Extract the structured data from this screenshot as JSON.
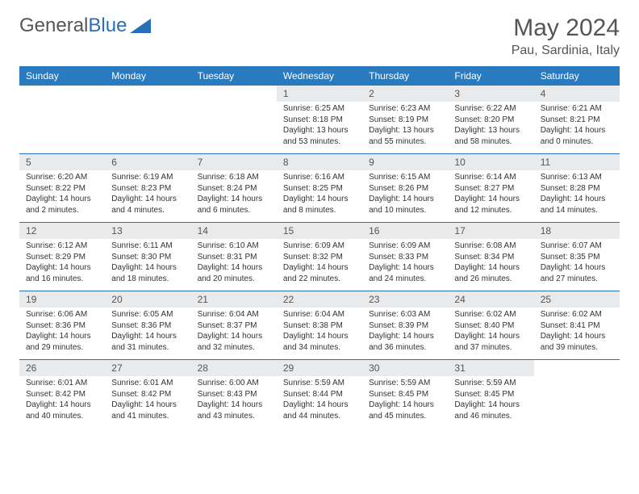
{
  "logo": {
    "text_gray": "General",
    "text_blue": "Blue"
  },
  "title": "May 2024",
  "location": "Pau, Sardinia, Italy",
  "days_of_week": [
    "Sunday",
    "Monday",
    "Tuesday",
    "Wednesday",
    "Thursday",
    "Friday",
    "Saturday"
  ],
  "colors": {
    "header_bg": "#2a7ac0",
    "header_text": "#ffffff",
    "daynum_bg": "#e9eaec",
    "row_border": "#2a6db8",
    "text": "#333333",
    "title_text": "#555555"
  },
  "weeks": [
    [
      {
        "n": "",
        "lines": []
      },
      {
        "n": "",
        "lines": []
      },
      {
        "n": "",
        "lines": []
      },
      {
        "n": "1",
        "lines": [
          "Sunrise: 6:25 AM",
          "Sunset: 8:18 PM",
          "Daylight: 13 hours and 53 minutes."
        ]
      },
      {
        "n": "2",
        "lines": [
          "Sunrise: 6:23 AM",
          "Sunset: 8:19 PM",
          "Daylight: 13 hours and 55 minutes."
        ]
      },
      {
        "n": "3",
        "lines": [
          "Sunrise: 6:22 AM",
          "Sunset: 8:20 PM",
          "Daylight: 13 hours and 58 minutes."
        ]
      },
      {
        "n": "4",
        "lines": [
          "Sunrise: 6:21 AM",
          "Sunset: 8:21 PM",
          "Daylight: 14 hours and 0 minutes."
        ]
      }
    ],
    [
      {
        "n": "5",
        "lines": [
          "Sunrise: 6:20 AM",
          "Sunset: 8:22 PM",
          "Daylight: 14 hours and 2 minutes."
        ]
      },
      {
        "n": "6",
        "lines": [
          "Sunrise: 6:19 AM",
          "Sunset: 8:23 PM",
          "Daylight: 14 hours and 4 minutes."
        ]
      },
      {
        "n": "7",
        "lines": [
          "Sunrise: 6:18 AM",
          "Sunset: 8:24 PM",
          "Daylight: 14 hours and 6 minutes."
        ]
      },
      {
        "n": "8",
        "lines": [
          "Sunrise: 6:16 AM",
          "Sunset: 8:25 PM",
          "Daylight: 14 hours and 8 minutes."
        ]
      },
      {
        "n": "9",
        "lines": [
          "Sunrise: 6:15 AM",
          "Sunset: 8:26 PM",
          "Daylight: 14 hours and 10 minutes."
        ]
      },
      {
        "n": "10",
        "lines": [
          "Sunrise: 6:14 AM",
          "Sunset: 8:27 PM",
          "Daylight: 14 hours and 12 minutes."
        ]
      },
      {
        "n": "11",
        "lines": [
          "Sunrise: 6:13 AM",
          "Sunset: 8:28 PM",
          "Daylight: 14 hours and 14 minutes."
        ]
      }
    ],
    [
      {
        "n": "12",
        "lines": [
          "Sunrise: 6:12 AM",
          "Sunset: 8:29 PM",
          "Daylight: 14 hours and 16 minutes."
        ]
      },
      {
        "n": "13",
        "lines": [
          "Sunrise: 6:11 AM",
          "Sunset: 8:30 PM",
          "Daylight: 14 hours and 18 minutes."
        ]
      },
      {
        "n": "14",
        "lines": [
          "Sunrise: 6:10 AM",
          "Sunset: 8:31 PM",
          "Daylight: 14 hours and 20 minutes."
        ]
      },
      {
        "n": "15",
        "lines": [
          "Sunrise: 6:09 AM",
          "Sunset: 8:32 PM",
          "Daylight: 14 hours and 22 minutes."
        ]
      },
      {
        "n": "16",
        "lines": [
          "Sunrise: 6:09 AM",
          "Sunset: 8:33 PM",
          "Daylight: 14 hours and 24 minutes."
        ]
      },
      {
        "n": "17",
        "lines": [
          "Sunrise: 6:08 AM",
          "Sunset: 8:34 PM",
          "Daylight: 14 hours and 26 minutes."
        ]
      },
      {
        "n": "18",
        "lines": [
          "Sunrise: 6:07 AM",
          "Sunset: 8:35 PM",
          "Daylight: 14 hours and 27 minutes."
        ]
      }
    ],
    [
      {
        "n": "19",
        "lines": [
          "Sunrise: 6:06 AM",
          "Sunset: 8:36 PM",
          "Daylight: 14 hours and 29 minutes."
        ]
      },
      {
        "n": "20",
        "lines": [
          "Sunrise: 6:05 AM",
          "Sunset: 8:36 PM",
          "Daylight: 14 hours and 31 minutes."
        ]
      },
      {
        "n": "21",
        "lines": [
          "Sunrise: 6:04 AM",
          "Sunset: 8:37 PM",
          "Daylight: 14 hours and 32 minutes."
        ]
      },
      {
        "n": "22",
        "lines": [
          "Sunrise: 6:04 AM",
          "Sunset: 8:38 PM",
          "Daylight: 14 hours and 34 minutes."
        ]
      },
      {
        "n": "23",
        "lines": [
          "Sunrise: 6:03 AM",
          "Sunset: 8:39 PM",
          "Daylight: 14 hours and 36 minutes."
        ]
      },
      {
        "n": "24",
        "lines": [
          "Sunrise: 6:02 AM",
          "Sunset: 8:40 PM",
          "Daylight: 14 hours and 37 minutes."
        ]
      },
      {
        "n": "25",
        "lines": [
          "Sunrise: 6:02 AM",
          "Sunset: 8:41 PM",
          "Daylight: 14 hours and 39 minutes."
        ]
      }
    ],
    [
      {
        "n": "26",
        "lines": [
          "Sunrise: 6:01 AM",
          "Sunset: 8:42 PM",
          "Daylight: 14 hours and 40 minutes."
        ]
      },
      {
        "n": "27",
        "lines": [
          "Sunrise: 6:01 AM",
          "Sunset: 8:42 PM",
          "Daylight: 14 hours and 41 minutes."
        ]
      },
      {
        "n": "28",
        "lines": [
          "Sunrise: 6:00 AM",
          "Sunset: 8:43 PM",
          "Daylight: 14 hours and 43 minutes."
        ]
      },
      {
        "n": "29",
        "lines": [
          "Sunrise: 5:59 AM",
          "Sunset: 8:44 PM",
          "Daylight: 14 hours and 44 minutes."
        ]
      },
      {
        "n": "30",
        "lines": [
          "Sunrise: 5:59 AM",
          "Sunset: 8:45 PM",
          "Daylight: 14 hours and 45 minutes."
        ]
      },
      {
        "n": "31",
        "lines": [
          "Sunrise: 5:59 AM",
          "Sunset: 8:45 PM",
          "Daylight: 14 hours and 46 minutes."
        ]
      },
      {
        "n": "",
        "lines": []
      }
    ]
  ]
}
